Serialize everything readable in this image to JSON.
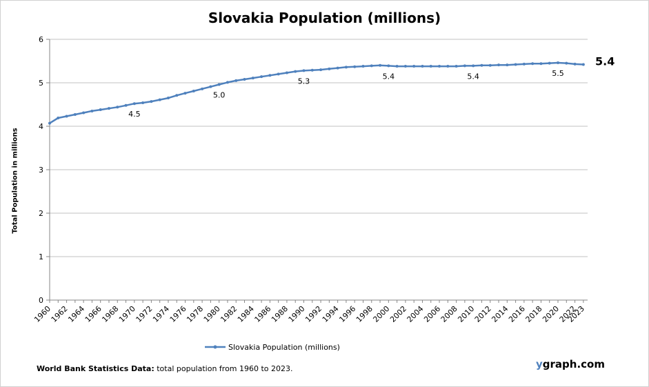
{
  "brand": {
    "y": "y",
    "rest": "graph.com"
  },
  "footer": {
    "bold": "World Bank Statistics Data:",
    "text": " total population from 1960 to 2023."
  },
  "chart_data": {
    "type": "line",
    "title": "Slovakia Population (millions)",
    "ylabel": "Total Population  in millions",
    "xlabel": "",
    "ylim": [
      0,
      6
    ],
    "yticks": [
      0,
      1,
      2,
      3,
      4,
      5,
      6
    ],
    "grid": true,
    "legend_position": "bottom",
    "color": "#4f81bd",
    "xticks": [
      "1960",
      "1962",
      "1964",
      "1966",
      "1968",
      "1970",
      "1972",
      "1974",
      "1976",
      "1978",
      "1980",
      "1982",
      "1984",
      "1986",
      "1988",
      "1990",
      "1992",
      "1994",
      "1996",
      "1998",
      "2000",
      "2002",
      "2004",
      "2006",
      "2008",
      "2010",
      "2012",
      "2014",
      "2016",
      "2018",
      "2020",
      "2022",
      "2023"
    ],
    "series": [
      {
        "name": "Slovakia Population (millions)",
        "x": [
          1960,
          1961,
          1962,
          1963,
          1964,
          1965,
          1966,
          1967,
          1968,
          1969,
          1970,
          1971,
          1972,
          1973,
          1974,
          1975,
          1976,
          1977,
          1978,
          1979,
          1980,
          1981,
          1982,
          1983,
          1984,
          1985,
          1986,
          1987,
          1988,
          1989,
          1990,
          1991,
          1992,
          1993,
          1994,
          1995,
          1996,
          1997,
          1998,
          1999,
          2000,
          2001,
          2002,
          2003,
          2004,
          2005,
          2006,
          2007,
          2008,
          2009,
          2010,
          2011,
          2012,
          2013,
          2014,
          2015,
          2016,
          2017,
          2018,
          2019,
          2020,
          2021,
          2022,
          2023
        ],
        "values": [
          4.07,
          4.19,
          4.23,
          4.27,
          4.31,
          4.35,
          4.38,
          4.41,
          4.44,
          4.48,
          4.52,
          4.54,
          4.57,
          4.61,
          4.65,
          4.71,
          4.76,
          4.81,
          4.86,
          4.91,
          4.96,
          5.01,
          5.05,
          5.08,
          5.11,
          5.14,
          5.17,
          5.2,
          5.23,
          5.26,
          5.28,
          5.29,
          5.3,
          5.32,
          5.34,
          5.36,
          5.37,
          5.38,
          5.39,
          5.4,
          5.39,
          5.38,
          5.38,
          5.38,
          5.38,
          5.38,
          5.38,
          5.38,
          5.38,
          5.39,
          5.39,
          5.4,
          5.4,
          5.41,
          5.41,
          5.42,
          5.43,
          5.44,
          5.44,
          5.45,
          5.46,
          5.45,
          5.43,
          5.42
        ]
      }
    ],
    "annotations": [
      {
        "x": 1970,
        "label": "4.5"
      },
      {
        "x": 1980,
        "label": "5.0"
      },
      {
        "x": 1990,
        "label": "5.3"
      },
      {
        "x": 2000,
        "label": "5.4"
      },
      {
        "x": 2010,
        "label": "5.4"
      },
      {
        "x": 2020,
        "label": "5.5"
      }
    ],
    "last_label": "5.4"
  }
}
